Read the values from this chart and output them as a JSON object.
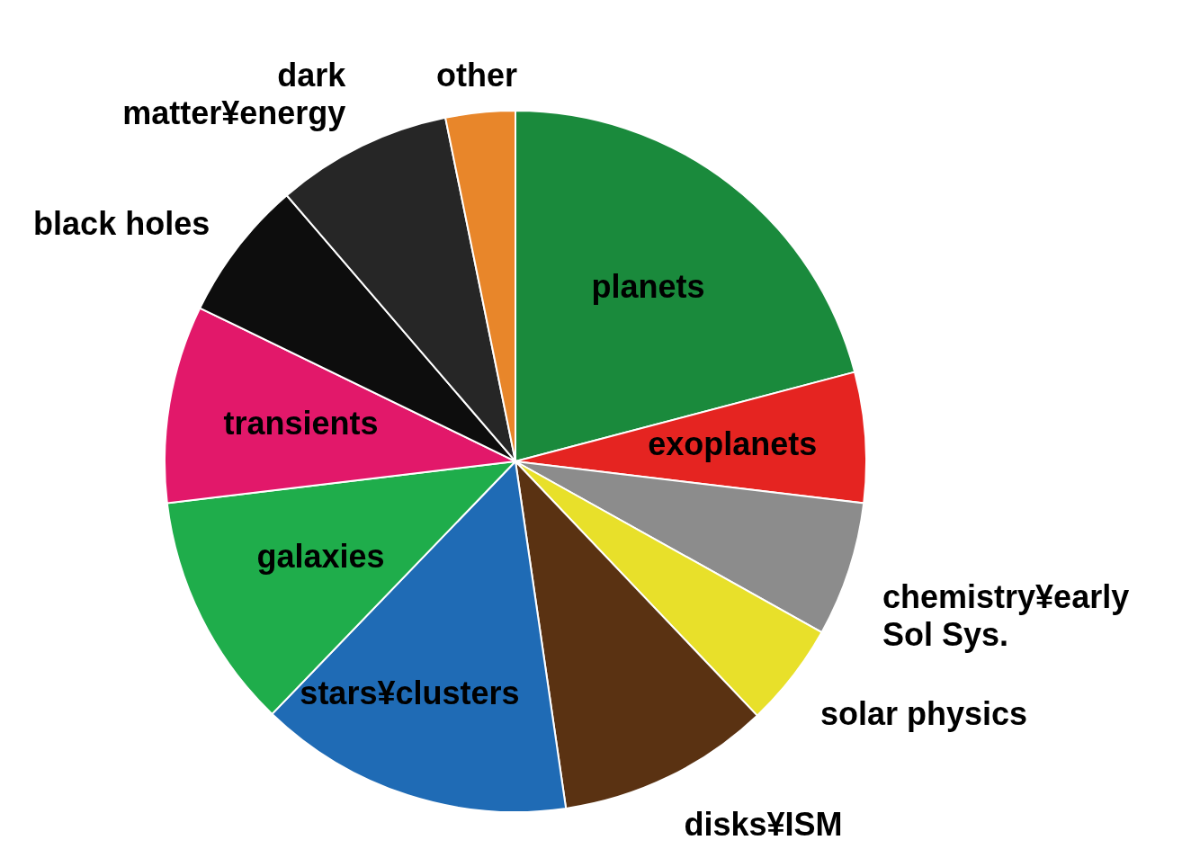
{
  "chart_data": {
    "type": "pie",
    "categories": [
      "planets",
      "exoplanets",
      "chemistry¥early Sol Sys.",
      "solar physics",
      "disks¥ISM",
      "stars¥clusters",
      "galaxies",
      "transients",
      "black holes",
      "dark matter¥energy",
      "other"
    ],
    "values": [
      20.9,
      6,
      6.2,
      4.8,
      9.8,
      14.5,
      10.9,
      9.1,
      6.5,
      8.1,
      3.2
    ],
    "colors": [
      "#1a8a3c",
      "#e52421",
      "#8c8c8c",
      "#e8e02a",
      "#5a3212",
      "#1f6bb5",
      "#1fad4b",
      "#e2186a",
      "#0d0d0d",
      "#262626",
      "#e8862a"
    ]
  }
}
